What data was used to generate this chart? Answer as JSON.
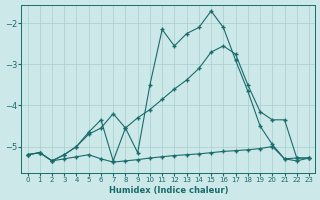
{
  "xlabel": "Humidex (Indice chaleur)",
  "background_color": "#cce8e8",
  "grid_color": "#aacece",
  "line_color": "#1a6b6b",
  "xlim": [
    -0.5,
    23.5
  ],
  "ylim": [
    -5.65,
    -1.55
  ],
  "yticks": [
    -5,
    -4,
    -3,
    -2
  ],
  "xticks": [
    0,
    1,
    2,
    3,
    4,
    5,
    6,
    7,
    8,
    9,
    10,
    11,
    12,
    13,
    14,
    15,
    16,
    17,
    18,
    19,
    20,
    21,
    22,
    23
  ],
  "line1_x": [
    0,
    1,
    2,
    3,
    4,
    5,
    6,
    7,
    8,
    9,
    10,
    11,
    12,
    13,
    14,
    15,
    16,
    17,
    18,
    19,
    20,
    21,
    22,
    23
  ],
  "line1_y": [
    -5.2,
    -5.15,
    -5.35,
    -5.3,
    -5.25,
    -5.2,
    -5.3,
    -5.38,
    -5.35,
    -5.32,
    -5.28,
    -5.25,
    -5.22,
    -5.2,
    -5.18,
    -5.15,
    -5.12,
    -5.1,
    -5.08,
    -5.05,
    -5.0,
    -5.3,
    -5.35,
    -5.28
  ],
  "line2_x": [
    0,
    1,
    2,
    3,
    4,
    5,
    6,
    7,
    8,
    9,
    10,
    11,
    12,
    13,
    14,
    15,
    16,
    17,
    18,
    19,
    20,
    21,
    22,
    23
  ],
  "line2_y": [
    -5.2,
    -5.15,
    -5.35,
    -5.2,
    -5.0,
    -4.7,
    -4.55,
    -4.2,
    -4.55,
    -4.3,
    -4.1,
    -3.85,
    -3.6,
    -3.38,
    -3.1,
    -2.7,
    -2.55,
    -2.75,
    -3.5,
    -4.15,
    -4.35,
    -4.35,
    -5.28,
    -5.28
  ],
  "line3_x": [
    0,
    1,
    2,
    3,
    4,
    5,
    6,
    7,
    8,
    9,
    10,
    11,
    12,
    13,
    14,
    15,
    16,
    17,
    18,
    19,
    20,
    21,
    22,
    23
  ],
  "line3_y": [
    -5.2,
    -5.15,
    -5.35,
    -5.2,
    -5.0,
    -4.65,
    -4.35,
    -5.35,
    -4.55,
    -5.15,
    -3.5,
    -2.15,
    -2.55,
    -2.25,
    -2.1,
    -1.7,
    -2.1,
    -2.9,
    -3.65,
    -4.5,
    -4.95,
    -5.3,
    -5.28,
    -5.28
  ]
}
